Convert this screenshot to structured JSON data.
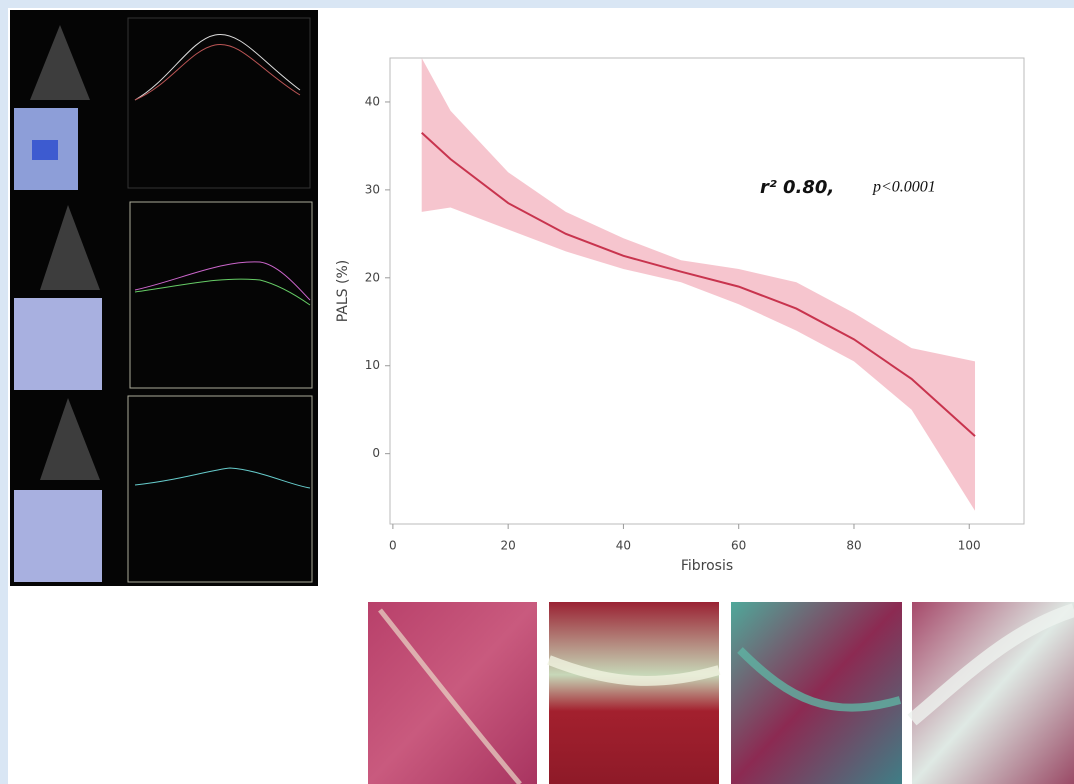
{
  "chart_data": {
    "type": "line",
    "x_label": "Fibrosis",
    "y_label": "PALS (%)",
    "annotation_r2": "r² 0.80,",
    "annotation_p": "p<0.0001",
    "x": [
      5,
      10,
      20,
      30,
      40,
      50,
      60,
      70,
      80,
      90,
      101
    ],
    "values": [
      36.5,
      33.5,
      28.5,
      25,
      22.5,
      20.7,
      19,
      16.5,
      13,
      8.5,
      2
    ],
    "band_lower": [
      27.5,
      28,
      25.5,
      23,
      21,
      19.5,
      17,
      14,
      10.5,
      5,
      -6.5
    ],
    "band_upper": [
      45,
      39,
      32,
      27.5,
      24.5,
      22,
      21,
      19.5,
      16,
      12,
      10.5
    ],
    "color": "#c8344e",
    "band_color": "#f4b7c2",
    "xlim": [
      -0.5,
      109.5
    ],
    "ylim": [
      -8,
      45
    ],
    "xticks": [
      0,
      20,
      40,
      60,
      80,
      100
    ],
    "yticks": [
      0,
      10,
      20,
      30,
      40
    ],
    "grid": false
  }
}
